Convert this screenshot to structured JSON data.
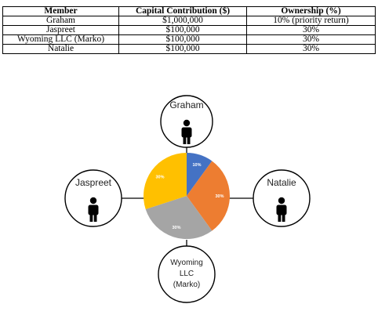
{
  "table": {
    "headers": [
      "Member",
      "Capital Contribution ($)",
      "Ownership (%)"
    ],
    "rows": [
      [
        "Graham",
        "$1,000,000",
        "10% (priority return)"
      ],
      [
        "Jaspreet",
        "$100,000",
        "30%"
      ],
      [
        "Wyoming LLC (Marko)",
        "$100,000",
        "30%"
      ],
      [
        "Natalie",
        "$100,000",
        "30%"
      ]
    ]
  },
  "diagram": {
    "nodes": {
      "top": "Graham",
      "left": "Jaspreet",
      "right": "Natalie",
      "bottom": [
        "Wyoming",
        "LLC",
        "(Marko)"
      ]
    },
    "icons": {
      "person": "person-icon"
    }
  },
  "chart_data": {
    "type": "pie",
    "categories": [
      "Graham",
      "Natalie",
      "Wyoming LLC (Marko)",
      "Jaspreet"
    ],
    "values": [
      10,
      30,
      30,
      30
    ],
    "labels": [
      "10%",
      "30%",
      "30%",
      "30%"
    ],
    "colors": [
      "#4472c4",
      "#ed7d31",
      "#a5a5a5",
      "#ffc000"
    ]
  }
}
